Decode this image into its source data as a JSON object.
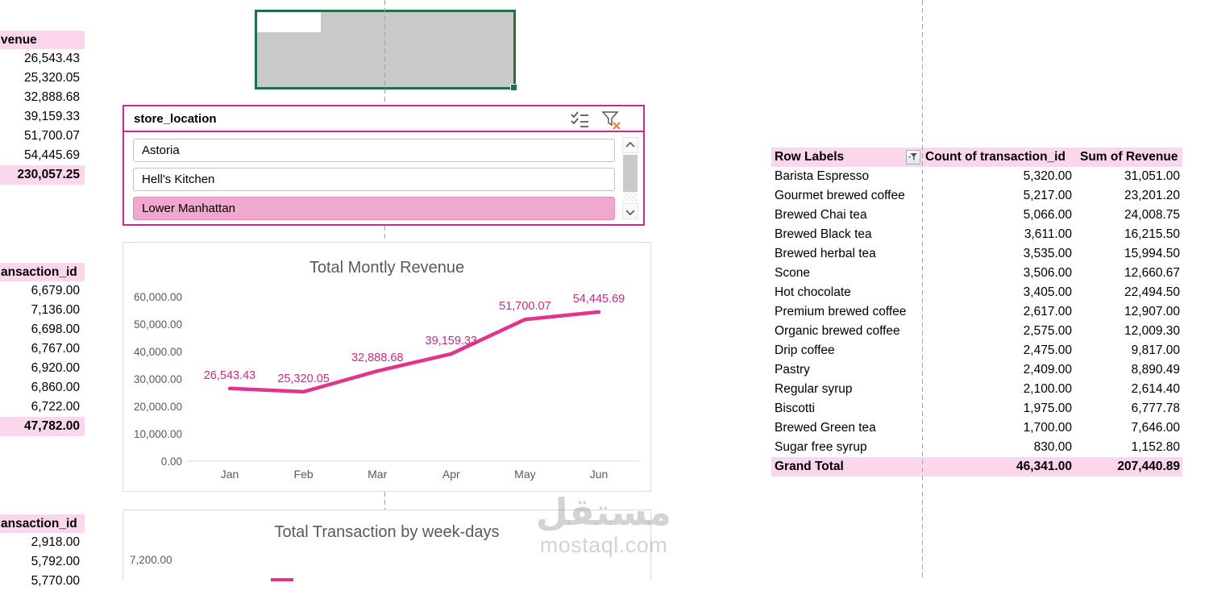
{
  "colors": {
    "accent_magenta": "#C9298C",
    "line_pink": "#E0358C",
    "data_label_pink": "#C02F80",
    "header_pink": "#FBD7EB",
    "selected_item_pink": "#F0A8CE",
    "selection_green": "#1E7244",
    "chart_text_gray": "#595959"
  },
  "left_tables": [
    {
      "header": "venue",
      "rows": [
        "26,543.43",
        "25,320.05",
        "32,888.68",
        "39,159.33",
        "51,700.07",
        "54,445.69"
      ],
      "total": "230,057.25"
    },
    {
      "header": "ansaction_id",
      "rows": [
        "6,679.00",
        "7,136.00",
        "6,698.00",
        "6,767.00",
        "6,920.00",
        "6,860.00",
        "6,722.00"
      ],
      "total": "47,782.00"
    },
    {
      "header": "ansaction_id",
      "rows": [
        "2,918.00",
        "5,792.00",
        "5,770.00"
      ],
      "total": null
    }
  ],
  "slicer": {
    "title": "store_location",
    "items": [
      {
        "label": "Astoria",
        "selected": false
      },
      {
        "label": "Hell's Kitchen",
        "selected": false
      },
      {
        "label": "Lower Manhattan",
        "selected": true
      }
    ],
    "icons": {
      "multi_select": "multi-select",
      "clear_filter": "clear-filter"
    }
  },
  "chart_data": [
    {
      "type": "line",
      "title": "Total Montly Revenue",
      "x": [
        "Jan",
        "Feb",
        "Mar",
        "Apr",
        "May",
        "Jun"
      ],
      "series": [
        {
          "name": "Revenue",
          "values": [
            26543.43,
            25320.05,
            32888.68,
            39159.33,
            51700.07,
            54445.69
          ]
        }
      ],
      "point_labels": [
        "26,543.43",
        "25,320.05",
        "32,888.68",
        "39,159.33",
        "51,700.07",
        "54,445.69"
      ],
      "ytick_labels": [
        "60,000.00",
        "50,000.00",
        "40,000.00",
        "30,000.00",
        "20,000.00",
        "10,000.00",
        "0.00"
      ],
      "ylim": [
        0,
        60000
      ],
      "grid": false,
      "legend": "none"
    },
    {
      "type": "bar",
      "title": "Total Transaction by week-days",
      "ytick_labels": [
        "7,200.00"
      ],
      "categories": [],
      "values": [],
      "visibility": "clipped at bottom edge; one bar top sliver visible"
    }
  ],
  "pivot": {
    "headers": [
      "Row Labels",
      "Count of transaction_id",
      "Sum of Revenue"
    ],
    "rows": [
      [
        "Barista Espresso",
        "5,320.00",
        "31,051.00"
      ],
      [
        "Gourmet brewed coffee",
        "5,217.00",
        "23,201.20"
      ],
      [
        "Brewed Chai tea",
        "5,066.00",
        "24,008.75"
      ],
      [
        "Brewed Black tea",
        "3,611.00",
        "16,215.50"
      ],
      [
        "Brewed herbal tea",
        "3,535.00",
        "15,994.50"
      ],
      [
        "Scone",
        "3,506.00",
        "12,660.67"
      ],
      [
        "Hot chocolate",
        "3,405.00",
        "22,494.50"
      ],
      [
        "Premium brewed coffee",
        "2,617.00",
        "12,907.00"
      ],
      [
        "Organic brewed coffee",
        "2,575.00",
        "12,009.30"
      ],
      [
        "Drip coffee",
        "2,475.00",
        "9,817.00"
      ],
      [
        "Pastry",
        "2,409.00",
        "8,890.49"
      ],
      [
        "Regular syrup",
        "2,100.00",
        "2,614.40"
      ],
      [
        "Biscotti",
        "1,975.00",
        "6,777.78"
      ],
      [
        "Brewed Green tea",
        "1,700.00",
        "7,646.00"
      ],
      [
        "Sugar free syrup",
        "830.00",
        "1,152.80"
      ]
    ],
    "grand_total": [
      "Grand Total",
      "46,341.00",
      "207,440.89"
    ]
  },
  "watermark": {
    "logo_text": "مستقل",
    "domain": "mostaql.com"
  }
}
